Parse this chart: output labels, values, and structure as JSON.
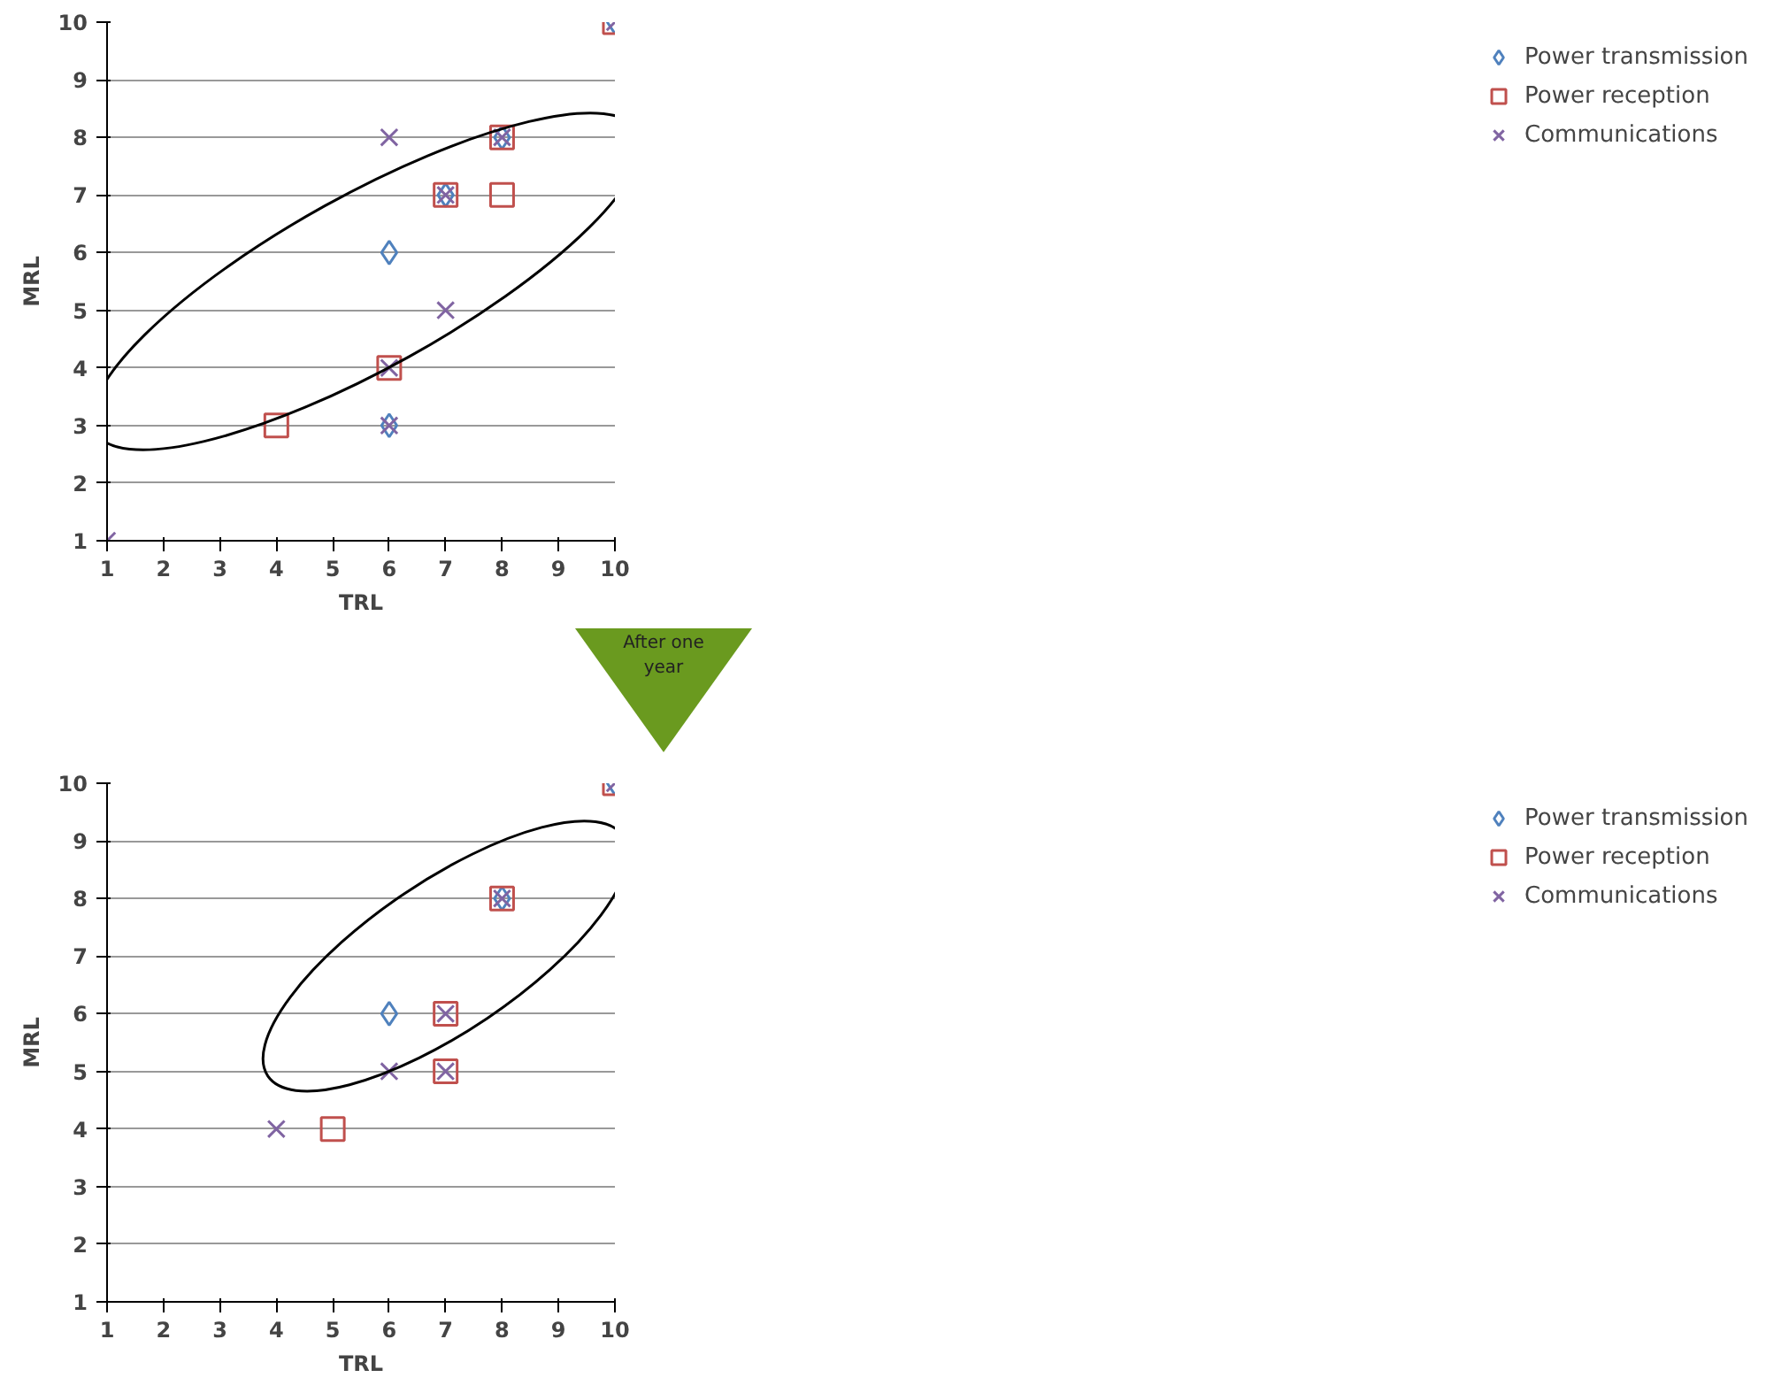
{
  "chart_data": [
    {
      "type": "scatter",
      "xlabel": "TRL",
      "ylabel": "MRL",
      "xlim": [
        1,
        10
      ],
      "ylim": [
        1,
        10
      ],
      "xticks": [
        1,
        2,
        3,
        4,
        5,
        6,
        7,
        8,
        9,
        10
      ],
      "yticks": [
        1,
        2,
        3,
        4,
        5,
        6,
        7,
        8,
        9,
        10
      ],
      "grid": "y",
      "legend": "right",
      "annotations": [
        "After one year"
      ],
      "series": [
        {
          "name": "Power transmission",
          "color": "#4f81bd",
          "marker": "diamond",
          "x": [
            6,
            7,
            8,
            10,
            6
          ],
          "values": [
            6,
            7,
            8,
            10,
            3
          ]
        },
        {
          "name": "Power reception",
          "color": "#c0504d",
          "marker": "square",
          "x": [
            4,
            6,
            7,
            8,
            8,
            10
          ],
          "values": [
            3,
            4,
            7,
            7,
            8,
            10
          ]
        },
        {
          "name": "Communications",
          "color": "#8064a2",
          "marker": "cross",
          "x": [
            1,
            6,
            6,
            7,
            7,
            8,
            10,
            6
          ],
          "values": [
            1,
            3,
            8,
            5,
            7,
            8,
            10,
            4
          ]
        }
      ]
    },
    {
      "type": "scatter",
      "xlabel": "TRL",
      "ylabel": "MRL",
      "xlim": [
        1,
        10
      ],
      "ylim": [
        1,
        10
      ],
      "xticks": [
        1,
        2,
        3,
        4,
        5,
        6,
        7,
        8,
        9,
        10
      ],
      "yticks": [
        1,
        2,
        3,
        4,
        5,
        6,
        7,
        8,
        9,
        10
      ],
      "grid": "y",
      "legend": "right",
      "series": [
        {
          "name": "Power transmission",
          "color": "#4f81bd",
          "marker": "diamond",
          "x": [
            6,
            8,
            10
          ],
          "values": [
            6,
            8,
            10
          ]
        },
        {
          "name": "Power reception",
          "color": "#c0504d",
          "marker": "square",
          "x": [
            5,
            7,
            7,
            8,
            10
          ],
          "values": [
            4,
            5,
            6,
            8,
            10
          ]
        },
        {
          "name": "Communications",
          "color": "#8064a2",
          "marker": "cross",
          "x": [
            4,
            6,
            7,
            7,
            8,
            10
          ],
          "values": [
            4,
            5,
            5,
            6,
            8,
            10
          ]
        }
      ]
    }
  ]
}
